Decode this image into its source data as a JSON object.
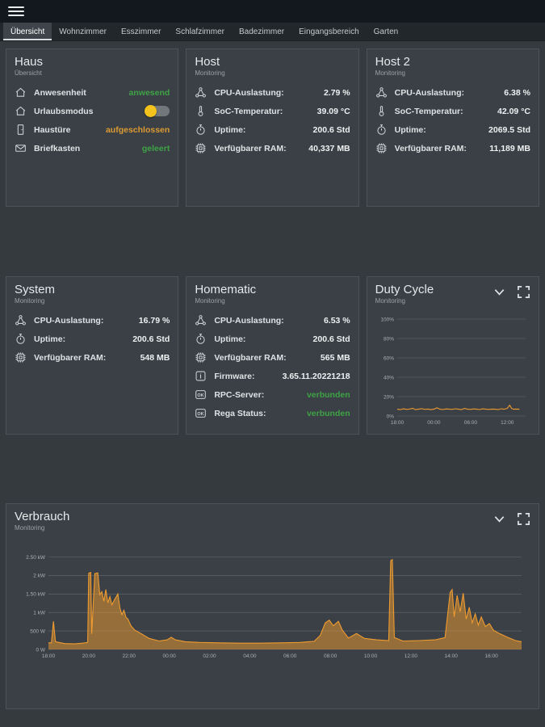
{
  "colors": {
    "chart_orange": "#ef9b30",
    "status_green": "#3fa246",
    "status_orange": "#dc9a33",
    "toggle_knob_yellow": "#f3c21c",
    "card_background": "#3a4045",
    "page_background": "#343a3e",
    "topbar_background": "#13171e"
  },
  "icon_glyphs": {
    "info": "i",
    "ok": "OK"
  },
  "tabs": [
    {
      "label": "Übersicht",
      "active": true
    },
    {
      "label": "Wohnzimmer",
      "active": false
    },
    {
      "label": "Esszimmer",
      "active": false
    },
    {
      "label": "Schlafzimmer",
      "active": false
    },
    {
      "label": "Badezimmer",
      "active": false
    },
    {
      "label": "Eingangsbereich",
      "active": false
    },
    {
      "label": "Garten",
      "active": false
    }
  ],
  "cards": {
    "haus": {
      "title": "Haus",
      "subtitle": "Übersicht",
      "rows": [
        {
          "icon": "house-icon",
          "label": "Anwesenheit",
          "value": "anwesend",
          "value_color": "green"
        },
        {
          "icon": "house-icon",
          "label": "Urlaubsmodus",
          "control": "toggle",
          "state": "off"
        },
        {
          "icon": "door-icon",
          "label": "Haustüre",
          "value": "aufgeschlossen",
          "value_color": "orange"
        },
        {
          "icon": "mailbox-icon",
          "label": "Briefkasten",
          "value": "geleert",
          "value_color": "green"
        }
      ]
    },
    "host": {
      "title": "Host",
      "subtitle": "Monitoring",
      "rows": [
        {
          "icon": "cpu-icon",
          "label": "CPU-Auslastung:",
          "value": "2.79 %"
        },
        {
          "icon": "thermometer-icon",
          "label": "SoC-Temperatur:",
          "value": "39.09 °C"
        },
        {
          "icon": "clock-icon",
          "label": "Uptime:",
          "value": "200.6 Std"
        },
        {
          "icon": "ram-icon",
          "label": "Verfügbarer RAM:",
          "value": "40,337 MB"
        }
      ]
    },
    "host2": {
      "title": "Host 2",
      "subtitle": "Monitoring",
      "rows": [
        {
          "icon": "cpu-icon",
          "label": "CPU-Auslastung:",
          "value": "6.38 %"
        },
        {
          "icon": "thermometer-icon",
          "label": "SoC-Temperatur:",
          "value": "42.09 °C"
        },
        {
          "icon": "clock-icon",
          "label": "Uptime:",
          "value": "2069.5 Std"
        },
        {
          "icon": "ram-icon",
          "label": "Verfügbarer RAM:",
          "value": "11,189 MB"
        }
      ]
    },
    "system": {
      "title": "System",
      "subtitle": "Monitoring",
      "rows": [
        {
          "icon": "cpu-icon",
          "label": "CPU-Auslastung:",
          "value": "16.79 %"
        },
        {
          "icon": "clock-icon",
          "label": "Uptime:",
          "value": "200.6 Std"
        },
        {
          "icon": "ram-icon",
          "label": "Verfügbarer RAM:",
          "value": "548 MB"
        }
      ]
    },
    "homematic": {
      "title": "Homematic",
      "subtitle": "Monitoring",
      "rows": [
        {
          "icon": "cpu-icon",
          "label": "CPU-Auslastung:",
          "value": "6.53 %"
        },
        {
          "icon": "clock-icon",
          "label": "Uptime:",
          "value": "200.6 Std"
        },
        {
          "icon": "ram-icon",
          "label": "Verfügbarer RAM:",
          "value": "565 MB"
        },
        {
          "icon": "info-icon",
          "label": "Firmware:",
          "value": "3.65.11.20221218"
        },
        {
          "icon": "ok-icon",
          "label": "RPC-Server:",
          "value": "verbunden",
          "value_color": "green"
        },
        {
          "icon": "ok-icon",
          "label": "Rega Status:",
          "value": "verbunden",
          "value_color": "green"
        }
      ]
    },
    "duty_cycle": {
      "title": "Duty Cycle",
      "subtitle": "Monitoring"
    },
    "verbrauch": {
      "title": "Verbrauch",
      "subtitle": "Monitoring"
    }
  },
  "chart_data": [
    {
      "id": "duty-cycle",
      "type": "line",
      "title": "Duty Cycle",
      "xlabel": "",
      "ylabel": "",
      "legend": "none",
      "grid": "horizontal",
      "color": "#ef9b30",
      "fill": false,
      "xlim": [
        0,
        21
      ],
      "ylim": [
        0,
        100
      ],
      "yticks": [
        {
          "v": 0,
          "label": "0%"
        },
        {
          "v": 20,
          "label": "20%"
        },
        {
          "v": 40,
          "label": "40%"
        },
        {
          "v": 60,
          "label": "60%"
        },
        {
          "v": 80,
          "label": "80%"
        },
        {
          "v": 100,
          "label": "100%"
        }
      ],
      "xticks": [
        {
          "v": 0,
          "label": "18:00"
        },
        {
          "v": 6,
          "label": "00:00"
        },
        {
          "v": 12,
          "label": "06:00"
        },
        {
          "v": 18,
          "label": "12:00"
        }
      ],
      "points": [
        [
          0,
          7
        ],
        [
          0.5,
          6.6
        ],
        [
          1,
          7.4
        ],
        [
          1.5,
          6.8
        ],
        [
          2,
          7.1
        ],
        [
          2.5,
          7.9
        ],
        [
          3,
          6.6
        ],
        [
          3.5,
          7
        ],
        [
          4,
          7.6
        ],
        [
          4.5,
          6.8
        ],
        [
          5,
          7.2
        ],
        [
          5.5,
          6.6
        ],
        [
          6,
          7
        ],
        [
          6.5,
          8.4
        ],
        [
          7,
          7
        ],
        [
          7.5,
          6.7
        ],
        [
          8,
          7.3
        ],
        [
          8.5,
          7
        ],
        [
          9,
          6.8
        ],
        [
          9.5,
          7.5
        ],
        [
          10,
          7
        ],
        [
          10.5,
          6.6
        ],
        [
          11,
          7.8
        ],
        [
          11.5,
          7
        ],
        [
          12,
          6.8
        ],
        [
          12.5,
          7.3
        ],
        [
          13,
          7
        ],
        [
          13.5,
          6.7
        ],
        [
          14,
          7.4
        ],
        [
          14.5,
          7
        ],
        [
          15,
          6.8
        ],
        [
          15.5,
          7.2
        ],
        [
          16,
          7
        ],
        [
          16.5,
          6.6
        ],
        [
          17,
          7.5
        ],
        [
          17.5,
          7
        ],
        [
          18,
          7.9
        ],
        [
          18.4,
          11.2
        ],
        [
          18.7,
          7.8
        ],
        [
          19,
          7
        ],
        [
          19.5,
          7.2
        ],
        [
          20,
          7
        ]
      ]
    },
    {
      "id": "verbrauch",
      "type": "area",
      "title": "Verbrauch",
      "xlabel": "",
      "ylabel": "",
      "legend": "none",
      "grid": "horizontal",
      "color": "#ef9b30",
      "fill": true,
      "xlim": [
        0,
        23.5
      ],
      "ylim": [
        0,
        2750
      ],
      "yticks": [
        {
          "v": 0,
          "label": "0 W"
        },
        {
          "v": 500,
          "label": "500 W"
        },
        {
          "v": 1000,
          "label": "1 kW"
        },
        {
          "v": 1500,
          "label": "1.50 kW"
        },
        {
          "v": 2000,
          "label": "2 kW"
        },
        {
          "v": 2500,
          "label": "2.50 kW"
        }
      ],
      "xticks": [
        {
          "v": 0,
          "label": "18:00"
        },
        {
          "v": 2,
          "label": "20:00"
        },
        {
          "v": 4,
          "label": "22:00"
        },
        {
          "v": 6,
          "label": "00:00"
        },
        {
          "v": 8,
          "label": "02:00"
        },
        {
          "v": 10,
          "label": "04:00"
        },
        {
          "v": 12,
          "label": "06:00"
        },
        {
          "v": 14,
          "label": "08:00"
        },
        {
          "v": 16,
          "label": "10:00"
        },
        {
          "v": 18,
          "label": "12:00"
        },
        {
          "v": 20,
          "label": "14:00"
        },
        {
          "v": 22,
          "label": "16:00"
        }
      ],
      "points": [
        [
          0,
          180
        ],
        [
          0.15,
          180
        ],
        [
          0.25,
          760
        ],
        [
          0.35,
          210
        ],
        [
          0.8,
          160
        ],
        [
          1.3,
          150
        ],
        [
          1.7,
          170
        ],
        [
          1.95,
          190
        ],
        [
          2.0,
          2060
        ],
        [
          2.1,
          2080
        ],
        [
          2.15,
          420
        ],
        [
          2.3,
          2050
        ],
        [
          2.45,
          2070
        ],
        [
          2.55,
          1480
        ],
        [
          2.65,
          1560
        ],
        [
          2.75,
          1300
        ],
        [
          2.85,
          1620
        ],
        [
          2.95,
          1260
        ],
        [
          3.05,
          1430
        ],
        [
          3.15,
          1210
        ],
        [
          3.3,
          1360
        ],
        [
          3.45,
          1500
        ],
        [
          3.55,
          1120
        ],
        [
          3.65,
          940
        ],
        [
          3.75,
          1060
        ],
        [
          3.85,
          870
        ],
        [
          3.95,
          820
        ],
        [
          4.1,
          640
        ],
        [
          4.3,
          520
        ],
        [
          4.6,
          430
        ],
        [
          5.0,
          300
        ],
        [
          5.5,
          230
        ],
        [
          5.9,
          260
        ],
        [
          6.1,
          330
        ],
        [
          6.3,
          260
        ],
        [
          6.8,
          210
        ],
        [
          7.5,
          190
        ],
        [
          8.5,
          180
        ],
        [
          9.5,
          170
        ],
        [
          10.5,
          170
        ],
        [
          11.5,
          180
        ],
        [
          12.5,
          190
        ],
        [
          13.2,
          220
        ],
        [
          13.5,
          380
        ],
        [
          13.75,
          720
        ],
        [
          13.95,
          790
        ],
        [
          14.15,
          640
        ],
        [
          14.4,
          760
        ],
        [
          14.6,
          520
        ],
        [
          14.9,
          310
        ],
        [
          15.3,
          430
        ],
        [
          15.7,
          300
        ],
        [
          16.3,
          260
        ],
        [
          16.9,
          240
        ],
        [
          17.0,
          2400
        ],
        [
          17.08,
          2430
        ],
        [
          17.18,
          320
        ],
        [
          17.6,
          230
        ],
        [
          18.4,
          240
        ],
        [
          19.2,
          260
        ],
        [
          19.7,
          320
        ],
        [
          19.95,
          1540
        ],
        [
          20.05,
          1620
        ],
        [
          20.15,
          880
        ],
        [
          20.3,
          1460
        ],
        [
          20.45,
          1020
        ],
        [
          20.6,
          1520
        ],
        [
          20.75,
          820
        ],
        [
          20.9,
          1140
        ],
        [
          21.05,
          720
        ],
        [
          21.2,
          960
        ],
        [
          21.35,
          660
        ],
        [
          21.5,
          880
        ],
        [
          21.7,
          620
        ],
        [
          21.9,
          700
        ],
        [
          22.1,
          520
        ],
        [
          22.4,
          430
        ],
        [
          22.8,
          330
        ],
        [
          23.2,
          240
        ],
        [
          23.5,
          210
        ]
      ]
    }
  ]
}
